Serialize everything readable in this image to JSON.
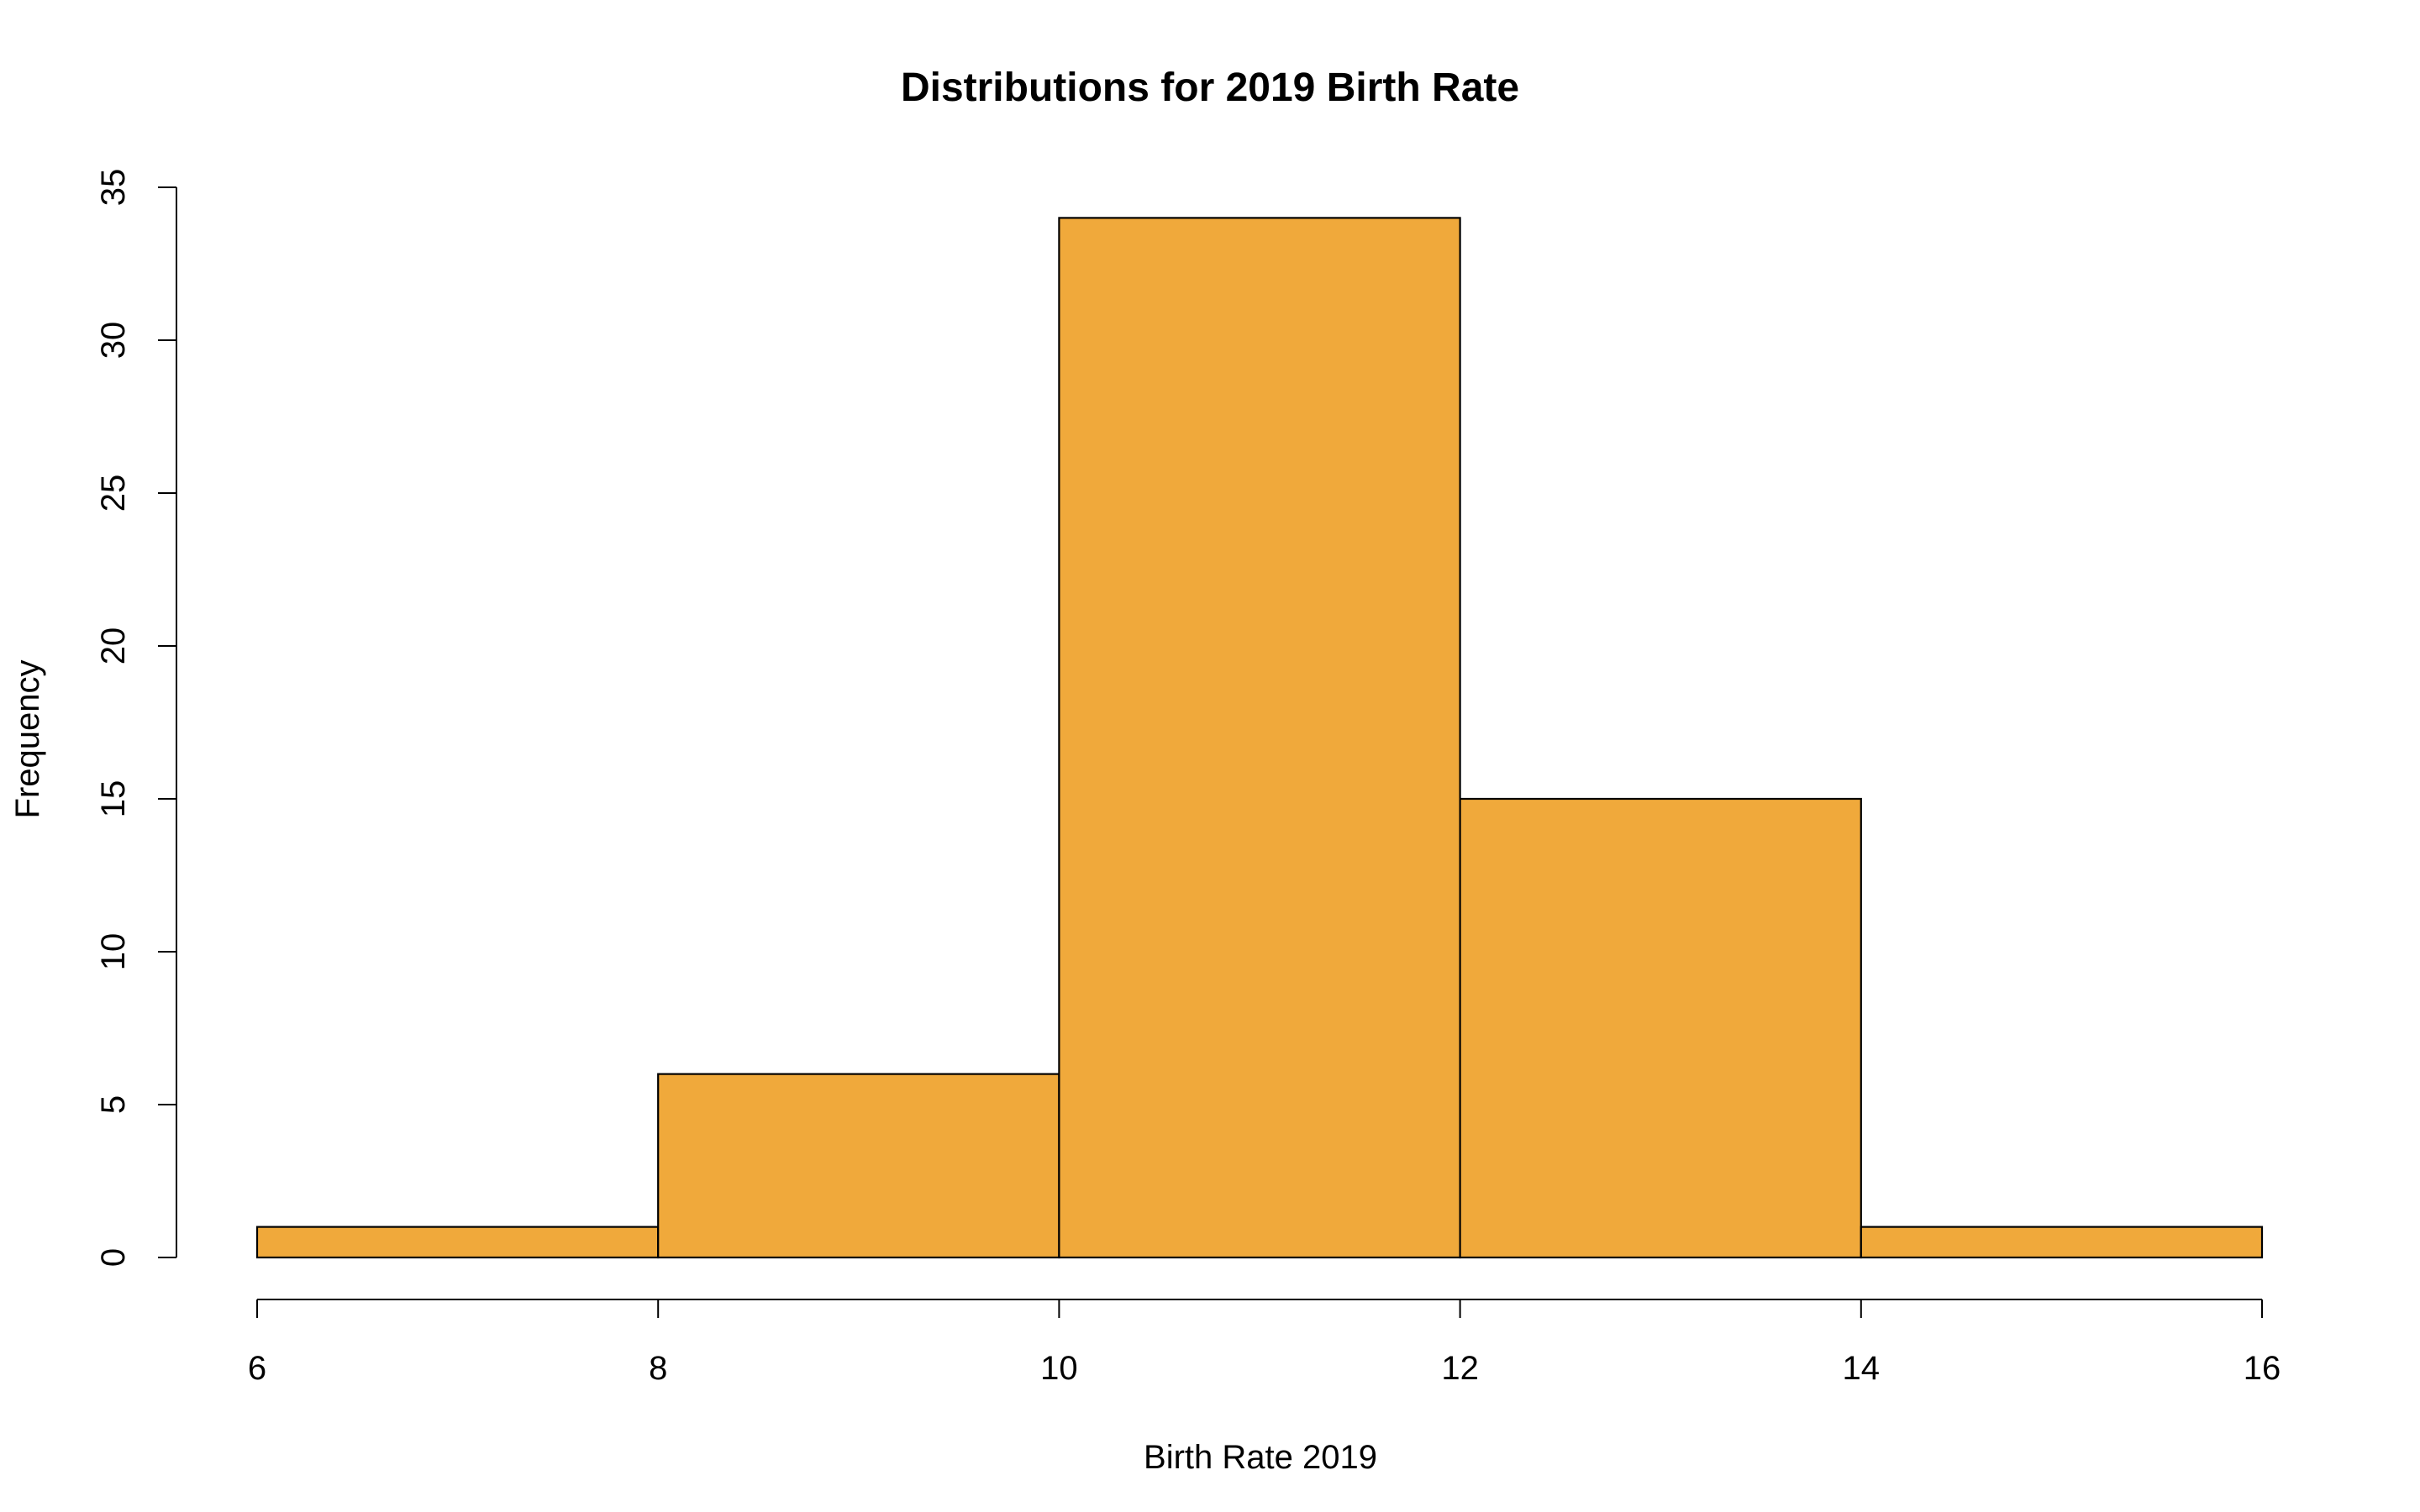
{
  "chart_data": {
    "type": "bar",
    "title": "Distributions for 2019 Birth Rate",
    "xlabel": "Birth Rate 2019",
    "ylabel": "Frequency",
    "bins": [
      {
        "start": 6,
        "end": 8,
        "count": 1
      },
      {
        "start": 8,
        "end": 10,
        "count": 6
      },
      {
        "start": 10,
        "end": 12,
        "count": 34
      },
      {
        "start": 12,
        "end": 14,
        "count": 15
      },
      {
        "start": 14,
        "end": 16,
        "count": 1
      }
    ],
    "xlim": [
      6,
      16
    ],
    "ylim": [
      0,
      35
    ],
    "xticks": [
      "6",
      "8",
      "10",
      "12",
      "14",
      "16"
    ],
    "yticks": [
      "0",
      "5",
      "10",
      "15",
      "20",
      "25",
      "30",
      "35"
    ],
    "bar_color": "#F0A93B",
    "grid": false,
    "legend": false
  }
}
